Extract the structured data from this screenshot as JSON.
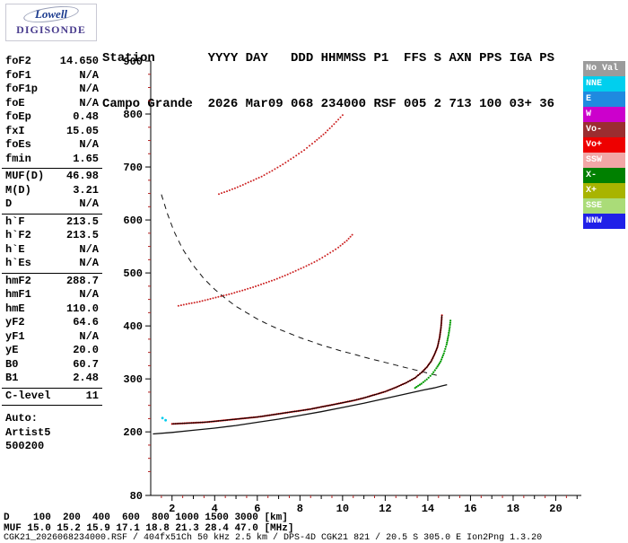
{
  "logo": {
    "brand_top": "Lowell",
    "brand_bottom": "DIGISONDE"
  },
  "header": {
    "line1": "Station       YYYY DAY   DDD HHMMSS P1  FFS S AXN PPS IGA PS",
    "line2": "Campo Grande  2026 Mar09 068 234000 RSF 005 2 713 100 03+ 36"
  },
  "params": {
    "groups": [
      {
        "divider": true,
        "rows": [
          {
            "label": "foF2",
            "value": "14.650"
          },
          {
            "label": "foF1",
            "value": "N/A"
          },
          {
            "label": "foF1p",
            "value": "N/A"
          },
          {
            "label": "foE",
            "value": "N/A"
          },
          {
            "label": "foEp",
            "value": "0.48"
          },
          {
            "label": "fxI",
            "value": "15.05"
          },
          {
            "label": "foEs",
            "value": "N/A"
          },
          {
            "label": "fmin",
            "value": "1.65"
          }
        ]
      },
      {
        "divider": true,
        "rows": [
          {
            "label": "MUF(D)",
            "value": "46.98"
          },
          {
            "label": "M(D)",
            "value": "3.21"
          },
          {
            "label": "D",
            "value": "N/A"
          }
        ]
      },
      {
        "divider": true,
        "rows": [
          {
            "label": "h`F",
            "value": "213.5"
          },
          {
            "label": "h`F2",
            "value": "213.5"
          },
          {
            "label": "h`E",
            "value": "N/A"
          },
          {
            "label": "h`Es",
            "value": "N/A"
          }
        ]
      },
      {
        "divider": true,
        "rows": [
          {
            "label": "hmF2",
            "value": "288.7"
          },
          {
            "label": "hmF1",
            "value": "N/A"
          },
          {
            "label": "hmE",
            "value": "110.0"
          },
          {
            "label": "yF2",
            "value": "64.6"
          },
          {
            "label": "yF1",
            "value": "N/A"
          },
          {
            "label": "yE",
            "value": "20.0"
          },
          {
            "label": "B0",
            "value": "60.7"
          },
          {
            "label": "B1",
            "value": "2.48"
          }
        ]
      },
      {
        "divider": true,
        "rows": [
          {
            "label": "C-level",
            "value": "11"
          }
        ]
      },
      {
        "divider": false,
        "rows": [
          {
            "label": "Auto:",
            "value": ""
          },
          {
            "label": "Artist5",
            "value": ""
          },
          {
            "label": "500200",
            "value": ""
          }
        ]
      }
    ]
  },
  "legend": {
    "items": [
      {
        "label": "No Val",
        "color": "#9b9b9b"
      },
      {
        "label": "NNE",
        "color": "#00cfee"
      },
      {
        "label": "E",
        "color": "#1f8ae0"
      },
      {
        "label": "W",
        "color": "#cc00cc"
      },
      {
        "label": "Vo-",
        "color": "#9b2d30"
      },
      {
        "label": "Vo+",
        "color": "#ee0000"
      },
      {
        "label": "SSW",
        "color": "#f2a6a6"
      },
      {
        "label": "X-",
        "color": "#008000"
      },
      {
        "label": "X+",
        "color": "#a8b400"
      },
      {
        "label": "SSE",
        "color": "#aadc78"
      },
      {
        "label": "NNW",
        "color": "#2020e8"
      }
    ]
  },
  "footer": {
    "d_row": "D    100  200  400  600  800 1000 1500 3000 [km]",
    "muf_row": "MUF 15.0 15.2 15.9 17.1 18.8 21.3 28.4 47.0 [MHz]",
    "file_row": "CGK21_2026068234000.RSF / 404fx51Ch 50 kHz 2.5 km / DPS-4D CGK21 821 / 20.5 S 305.0 E Ion2Png 1.3.20",
    "muf_table": {
      "distance_km": [
        100,
        200,
        400,
        600,
        800,
        1000,
        1500,
        3000
      ],
      "muf_mhz": [
        15.0,
        15.2,
        15.9,
        17.1,
        18.8,
        21.3,
        28.4,
        47.0
      ]
    }
  },
  "chart_data": {
    "type": "scatter",
    "xlabel": "",
    "ylabel": "",
    "xlim": [
      1,
      21.2
    ],
    "ylim": [
      80,
      900
    ],
    "x_ticks": [
      2,
      4,
      6,
      8,
      10,
      12,
      14,
      16,
      18,
      20
    ],
    "y_ticks": [
      80,
      200,
      300,
      400,
      500,
      600,
      700,
      800,
      900
    ],
    "grid": false,
    "legend_position": "right",
    "series": [
      {
        "name": "muf-transmission-curve",
        "style": "dashed",
        "color": "#111111",
        "width": 1,
        "points": [
          [
            1.5,
            648
          ],
          [
            1.8,
            610
          ],
          [
            2.1,
            578
          ],
          [
            2.5,
            545
          ],
          [
            3,
            514
          ],
          [
            3.5,
            489
          ],
          [
            4,
            469
          ],
          [
            4.5,
            452
          ],
          [
            5,
            437
          ],
          [
            5.5,
            425
          ],
          [
            6,
            413
          ],
          [
            6.5,
            403
          ],
          [
            7,
            394
          ],
          [
            7.5,
            386
          ],
          [
            8,
            378
          ],
          [
            8.5,
            371
          ],
          [
            9,
            364
          ],
          [
            9.5,
            358
          ],
          [
            10,
            352
          ],
          [
            10.5,
            347
          ],
          [
            11,
            341
          ],
          [
            11.5,
            336
          ],
          [
            12,
            331
          ],
          [
            12.5,
            326
          ],
          [
            13,
            321
          ],
          [
            13.5,
            316
          ],
          [
            14,
            311
          ],
          [
            14.5,
            306
          ]
        ]
      },
      {
        "name": "true-height-profile",
        "style": "line",
        "color": "#111111",
        "width": 1.3,
        "points": [
          [
            1.1,
            196
          ],
          [
            2,
            199
          ],
          [
            3,
            203
          ],
          [
            4,
            207
          ],
          [
            5,
            212
          ],
          [
            6,
            218
          ],
          [
            7,
            224
          ],
          [
            8,
            231
          ],
          [
            9,
            238
          ],
          [
            10,
            246
          ],
          [
            11,
            254
          ],
          [
            12,
            263
          ],
          [
            13,
            272
          ],
          [
            13.8,
            279
          ],
          [
            14.3,
            283
          ],
          [
            14.7,
            287
          ],
          [
            14.9,
            289
          ]
        ]
      },
      {
        "name": "second-hop-trace",
        "style": "dots",
        "color": "#cc2222",
        "dot_spacing": 3.4,
        "dot_r": 1,
        "points": [
          [
            2.3,
            438
          ],
          [
            2.8,
            442
          ],
          [
            3.3,
            446
          ],
          [
            3.8,
            451
          ],
          [
            4.3,
            456
          ],
          [
            4.8,
            461
          ],
          [
            5.3,
            467
          ],
          [
            5.8,
            473
          ],
          [
            6.3,
            480
          ],
          [
            6.8,
            487
          ],
          [
            7.3,
            495
          ],
          [
            7.8,
            504
          ],
          [
            8.3,
            513
          ],
          [
            8.8,
            523
          ],
          [
            9.3,
            535
          ],
          [
            9.8,
            548
          ],
          [
            10.2,
            561
          ],
          [
            10.45,
            572
          ]
        ]
      },
      {
        "name": "third-hop-trace",
        "style": "dots",
        "color": "#cc2222",
        "dot_spacing": 3.4,
        "dot_r": 1,
        "points": [
          [
            4.2,
            649
          ],
          [
            4.7,
            656
          ],
          [
            5.2,
            664
          ],
          [
            5.7,
            673
          ],
          [
            6.2,
            682
          ],
          [
            6.7,
            693
          ],
          [
            7.2,
            705
          ],
          [
            7.7,
            718
          ],
          [
            8.2,
            732
          ],
          [
            8.7,
            748
          ],
          [
            9.2,
            765
          ],
          [
            9.6,
            781
          ],
          [
            10,
            798
          ]
        ]
      },
      {
        "name": "f2-trace-o-mode",
        "style": "dots",
        "color": "#cc0000",
        "dot_spacing": 2.1,
        "dot_r": 1.1,
        "points": [
          [
            2,
            215
          ],
          [
            2.5,
            216
          ],
          [
            3,
            217
          ],
          [
            3.5,
            218
          ],
          [
            4,
            220
          ],
          [
            4.5,
            222
          ],
          [
            5,
            224
          ],
          [
            5.5,
            226
          ],
          [
            6,
            228
          ],
          [
            6.5,
            231
          ],
          [
            7,
            234
          ],
          [
            7.5,
            237
          ],
          [
            8,
            240
          ],
          [
            8.5,
            243
          ],
          [
            9,
            247
          ],
          [
            9.5,
            251
          ],
          [
            10,
            255
          ],
          [
            10.5,
            259
          ],
          [
            11,
            264
          ],
          [
            11.5,
            270
          ],
          [
            12,
            276
          ],
          [
            12.5,
            284
          ],
          [
            13,
            293
          ],
          [
            13.4,
            302
          ],
          [
            13.7,
            312
          ],
          [
            13.95,
            322
          ],
          [
            14.15,
            333
          ],
          [
            14.3,
            345
          ],
          [
            14.45,
            360
          ],
          [
            14.55,
            378
          ],
          [
            14.62,
            398
          ],
          [
            14.66,
            420
          ]
        ]
      },
      {
        "name": "f2-trace-x-mode",
        "style": "dots",
        "color": "#009900",
        "dot_spacing": 2.4,
        "dot_r": 1.1,
        "points": [
          [
            13.4,
            283
          ],
          [
            13.7,
            291
          ],
          [
            13.95,
            299
          ],
          [
            14.2,
            309
          ],
          [
            14.4,
            320
          ],
          [
            14.6,
            333
          ],
          [
            14.75,
            348
          ],
          [
            14.88,
            365
          ],
          [
            14.97,
            383
          ],
          [
            15.03,
            398
          ],
          [
            15.06,
            410
          ]
        ]
      },
      {
        "name": "artist-fitted-trace",
        "style": "line",
        "color": "#000000",
        "width": 1,
        "points": [
          [
            2,
            215
          ],
          [
            2.5,
            216
          ],
          [
            3,
            217
          ],
          [
            3.5,
            218
          ],
          [
            4,
            220
          ],
          [
            4.5,
            222
          ],
          [
            5,
            224
          ],
          [
            5.5,
            226
          ],
          [
            6,
            228
          ],
          [
            6.5,
            231
          ],
          [
            7,
            234
          ],
          [
            7.5,
            237
          ],
          [
            8,
            240
          ],
          [
            8.5,
            243
          ],
          [
            9,
            247
          ],
          [
            9.5,
            251
          ],
          [
            10,
            255
          ],
          [
            10.5,
            259
          ],
          [
            11,
            264
          ],
          [
            11.5,
            270
          ],
          [
            12,
            276
          ],
          [
            12.5,
            284
          ],
          [
            13,
            293
          ],
          [
            13.4,
            302
          ],
          [
            13.7,
            312
          ],
          [
            13.95,
            322
          ],
          [
            14.15,
            333
          ],
          [
            14.3,
            345
          ],
          [
            14.45,
            360
          ],
          [
            14.55,
            378
          ],
          [
            14.62,
            398
          ],
          [
            14.66,
            420
          ]
        ]
      },
      {
        "name": "stray-echoes",
        "style": "points",
        "color": "#00ccee",
        "dot_r": 1.4,
        "points": [
          [
            1.7,
            222
          ],
          [
            1.55,
            226
          ]
        ]
      }
    ]
  }
}
